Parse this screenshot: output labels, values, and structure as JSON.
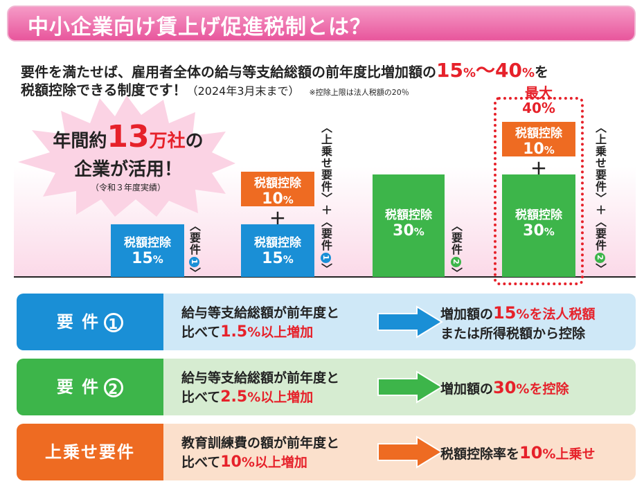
{
  "title": "中小企業向け賃上げ促進税制とは？",
  "intro": {
    "line1_a": "要件を満たせば、雇用者全体の給与等支給総額の前年度比増加額の",
    "pct15": "15",
    "pct_unit": "%",
    "tilde": "～",
    "pct40": "40",
    "line1_b": "を",
    "line2_a": "税額控除できる制度です！",
    "line2_b": "（2024年3月末まで）",
    "note": "※控除上限は法人税額の20％"
  },
  "burst": {
    "pre": "年間約",
    "num": "13",
    "mid": "万社",
    "post": "の",
    "line2": "企業が活用！",
    "line3": "（令和３年度実績）"
  },
  "bars": {
    "label": "税額控除",
    "v15": "15",
    "v10": "10",
    "v30": "30",
    "unit": "%",
    "plus": "＋"
  },
  "vertical": {
    "req_open": "〈要件",
    "req_close": "〉",
    "num1": "1",
    "num2": "2",
    "addon": "〈上乗せ要件〉＋",
    "max_label": "最大",
    "max_value": "40%"
  },
  "colors": {
    "blue": "#1a8fd6",
    "green": "#3db54a",
    "orange": "#ee6b22",
    "red": "#e6212a",
    "pink": "#e8569c"
  },
  "rows": [
    {
      "head": "要 件",
      "num": "1",
      "mid_1": "給与等支給総額が前年度と",
      "mid_2a": "比べて",
      "mid_hl": "1.5",
      "mid_unit": "%",
      "mid_2b": "以上増加",
      "res_1a": "増加額の",
      "res_hl": "15",
      "res_unit": "%",
      "res_1b": "を法人税額",
      "res_2": "または所得税額から控除"
    },
    {
      "head": "要 件",
      "num": "2",
      "mid_1": "給与等支給総額が前年度と",
      "mid_2a": "比べて",
      "mid_hl": "2.5",
      "mid_unit": "%",
      "mid_2b": "以上増加",
      "res_1a": "増加額の",
      "res_hl": "30",
      "res_unit": "%",
      "res_1b": "を控除"
    },
    {
      "head": "上乗せ要件",
      "mid_1": "教育訓練費の額が前年度と",
      "mid_2a": "比べて",
      "mid_hl": "10",
      "mid_unit": "%",
      "mid_2b": "以上増加",
      "res_1a": "税額控除率を",
      "res_hl": "10",
      "res_unit": "%",
      "res_1b": "上乗せ"
    }
  ]
}
